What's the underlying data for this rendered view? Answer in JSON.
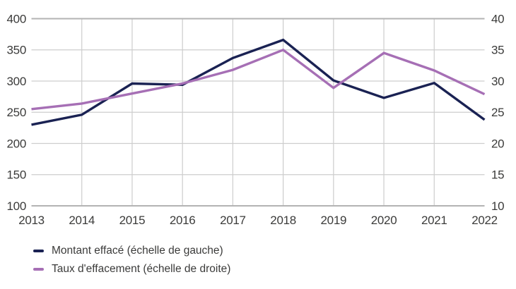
{
  "chart_data": {
    "type": "line",
    "x": [
      2013,
      2014,
      2015,
      2016,
      2017,
      2018,
      2019,
      2020,
      2021,
      2022
    ],
    "x_tick_labels": [
      "2013",
      "2014",
      "2015",
      "2016",
      "2017",
      "2018",
      "2019",
      "2020",
      "2021",
      "2022"
    ],
    "left_axis": {
      "min": 100,
      "max": 400,
      "ticks": [
        400,
        350,
        300,
        250,
        200,
        150,
        100
      ]
    },
    "right_axis": {
      "min": 10,
      "max": 40,
      "ticks": [
        40,
        35,
        30,
        25,
        20,
        15,
        10
      ]
    },
    "grid": true,
    "legend_position": "bottom-left",
    "series": [
      {
        "name": "Montant efface",
        "legend": "Montant effacé (échelle de gauche)",
        "axis": "left",
        "color": "#1a2253",
        "values": [
          230,
          246,
          296,
          294,
          337,
          366,
          301,
          273,
          297,
          238
        ]
      },
      {
        "name": "Taux d'effacement",
        "legend": "Taux d'effacement (échelle de droite)",
        "axis": "right",
        "color": "#a66fb5",
        "values": [
          25.5,
          26.4,
          28.0,
          29.6,
          31.8,
          35.0,
          28.9,
          34.5,
          31.7,
          27.9
        ]
      }
    ]
  },
  "colors": {
    "background": "#ffffff",
    "grid": "#cdcdcd",
    "grid_edge": "#b3b3b3",
    "axis_text": "#3b3b3a"
  }
}
